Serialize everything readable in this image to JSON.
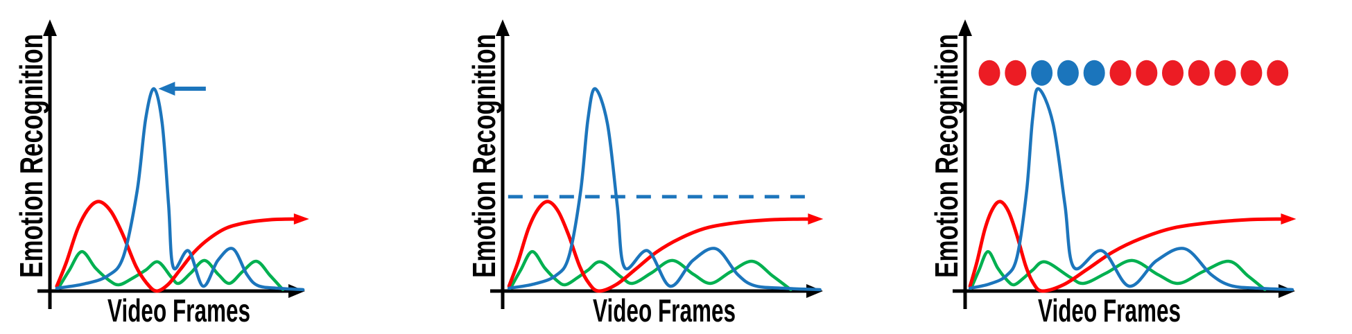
{
  "colors": {
    "red": "#FF0000",
    "blue": "#1C75BC",
    "green": "#00B050",
    "dot_red": "#EC1C24",
    "dot_blue": "#1B75BC",
    "black": "#000000"
  },
  "chart_data": {
    "type": "line",
    "title": "",
    "x_axis": {
      "label": "Video Frames",
      "ticks": "none",
      "range_norm": [
        0,
        1
      ]
    },
    "y_axis": {
      "label": "Emotion Recognition",
      "ticks": "none",
      "range_norm": [
        0,
        1
      ]
    },
    "grid": "off",
    "legend": "none",
    "base_series": [
      {
        "name": "red_curve",
        "color_key": "red",
        "end_arrow": true,
        "points": [
          [
            0.027,
            0.024
          ],
          [
            0.065,
            0.144
          ],
          [
            0.109,
            0.308
          ],
          [
            0.152,
            0.408
          ],
          [
            0.193,
            0.442
          ],
          [
            0.239,
            0.394
          ],
          [
            0.285,
            0.281
          ],
          [
            0.337,
            0.123
          ],
          [
            0.38,
            0.038
          ],
          [
            0.418,
            0.0
          ],
          [
            0.462,
            0.031
          ],
          [
            0.511,
            0.106
          ],
          [
            0.565,
            0.192
          ],
          [
            0.625,
            0.26
          ],
          [
            0.693,
            0.312
          ],
          [
            0.774,
            0.339
          ],
          [
            0.87,
            0.353
          ],
          [
            0.967,
            0.356
          ]
        ]
      },
      {
        "name": "blue_curve",
        "color_key": "blue",
        "end_arrow": false,
        "points": [
          [
            0.027,
            0.014
          ],
          [
            0.13,
            0.034
          ],
          [
            0.226,
            0.075
          ],
          [
            0.288,
            0.171
          ],
          [
            0.342,
            0.497
          ],
          [
            0.375,
            0.849
          ],
          [
            0.408,
            1.0
          ],
          [
            0.44,
            0.829
          ],
          [
            0.465,
            0.428
          ],
          [
            0.484,
            0.116
          ],
          [
            0.543,
            0.199
          ],
          [
            0.6,
            0.024
          ],
          [
            0.658,
            0.151
          ],
          [
            0.717,
            0.209
          ],
          [
            0.772,
            0.082
          ],
          [
            0.815,
            0.027
          ],
          [
            0.891,
            0.014
          ],
          [
            0.992,
            0.007
          ]
        ]
      },
      {
        "name": "green_curve",
        "color_key": "green",
        "end_arrow": false,
        "points": [
          [
            0.033,
            0.014
          ],
          [
            0.076,
            0.103
          ],
          [
            0.125,
            0.195
          ],
          [
            0.179,
            0.113
          ],
          [
            0.234,
            0.051
          ],
          [
            0.272,
            0.031
          ],
          [
            0.326,
            0.065
          ],
          [
            0.375,
            0.103
          ],
          [
            0.424,
            0.144
          ],
          [
            0.476,
            0.068
          ],
          [
            0.505,
            0.038
          ],
          [
            0.552,
            0.089
          ],
          [
            0.606,
            0.151
          ],
          [
            0.66,
            0.082
          ],
          [
            0.704,
            0.038
          ],
          [
            0.755,
            0.096
          ],
          [
            0.81,
            0.147
          ],
          [
            0.864,
            0.075
          ],
          [
            0.913,
            0.007
          ]
        ]
      }
    ],
    "panels": [
      {
        "xlabel": "Video Frames",
        "ylabel": "Emotion Recognition",
        "x_warp_from": [
          0,
          0.19,
          0.41,
          0.81,
          1
        ],
        "x_warp_to": [
          0,
          0.19,
          0.41,
          0.81,
          1
        ],
        "annotation": {
          "type": "peak_arrow",
          "color_key": "blue",
          "fy": 1.0,
          "from_fx": 0.611,
          "to_fx": 0.425
        }
      },
      {
        "xlabel": "Video Frames",
        "ylabel": "Emotion Recognition",
        "x_warp_from": [
          0,
          0.19,
          0.41,
          0.81,
          1
        ],
        "x_warp_to": [
          0,
          0.14,
          0.29,
          0.78,
          1
        ],
        "annotation": {
          "type": "threshold_line",
          "color_key": "blue",
          "style": "dashed",
          "fy": 0.466,
          "from_fx": 0.017,
          "to_fx": 0.952
        }
      },
      {
        "xlabel": "Video Frames",
        "ylabel": "Emotion Recognition",
        "x_warp_from": [
          0,
          0.19,
          0.41,
          0.81,
          1
        ],
        "x_warp_to": [
          0,
          0.105,
          0.223,
          0.8,
          1
        ],
        "annotation": {
          "type": "frame_dots",
          "fy": 1.078,
          "start_fx": 0.0735,
          "step_fx": 0.0794,
          "colors": [
            "red",
            "red",
            "blue",
            "blue",
            "blue",
            "red",
            "red",
            "red",
            "red",
            "red",
            "red",
            "red"
          ]
        }
      }
    ]
  }
}
